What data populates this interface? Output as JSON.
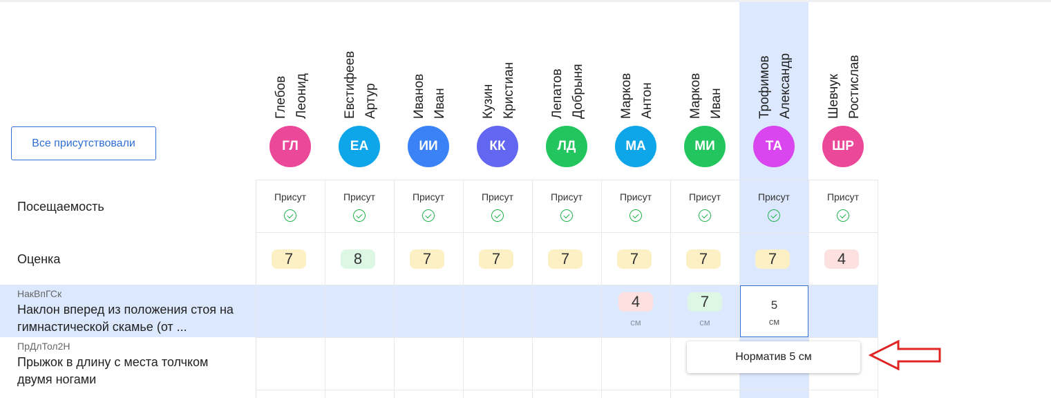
{
  "toolbar": {
    "all_present_label": "Все присутствовали"
  },
  "rows": {
    "attendance_label": "Посещаемость",
    "grade_label": "Оценка"
  },
  "exercises": [
    {
      "code": "НакВпГСк",
      "title": "Наклон вперед из положения стоя на гимнастической скамье (от ..."
    },
    {
      "code": "ПрДлТол2Н",
      "title": "Прыжок в длину с места толчком двумя ногами"
    }
  ],
  "students": [
    {
      "last": "Глебов",
      "first": "Леонид",
      "initials": "ГЛ",
      "color": "#ec4899",
      "attendance": "Присут",
      "grade": "7",
      "grade_tone": "yellow",
      "result": "",
      "unit": ""
    },
    {
      "last": "Евстифеев",
      "first": "Артур",
      "initials": "ЕА",
      "color": "#0ea5e9",
      "attendance": "Присут",
      "grade": "8",
      "grade_tone": "green",
      "result": "",
      "unit": ""
    },
    {
      "last": "Иванов",
      "first": "Иван",
      "initials": "ИИ",
      "color": "#3b82f6",
      "attendance": "Присут",
      "grade": "7",
      "grade_tone": "yellow",
      "result": "",
      "unit": ""
    },
    {
      "last": "Кузин",
      "first": "Кристиан",
      "initials": "КК",
      "color": "#6366f1",
      "attendance": "Присут",
      "grade": "7",
      "grade_tone": "yellow",
      "result": "",
      "unit": ""
    },
    {
      "last": "Лепатов",
      "first": "Добрыня",
      "initials": "ЛД",
      "color": "#22c55e",
      "attendance": "Присут",
      "grade": "7",
      "grade_tone": "yellow",
      "result": "",
      "unit": ""
    },
    {
      "last": "Марков",
      "first": "Антон",
      "initials": "МА",
      "color": "#0ea5e9",
      "attendance": "Присут",
      "grade": "7",
      "grade_tone": "yellow",
      "result": "4",
      "result_tone": "red",
      "unit": "см"
    },
    {
      "last": "Марков",
      "first": "Иван",
      "initials": "МИ",
      "color": "#22c55e",
      "attendance": "Присут",
      "grade": "7",
      "grade_tone": "yellow",
      "result": "7",
      "result_tone": "green",
      "unit": "см"
    },
    {
      "last": "Трофимов",
      "first": "Александр",
      "initials": "ТА",
      "color": "#d946ef",
      "attendance": "Присут",
      "grade": "7",
      "grade_tone": "yellow",
      "result": "",
      "unit": ""
    },
    {
      "last": "Шевчук",
      "first": "Ростислав",
      "initials": "ШР",
      "color": "#ec4899",
      "attendance": "Присут",
      "grade": "4",
      "grade_tone": "red",
      "result": "",
      "unit": ""
    }
  ],
  "active_input": {
    "value": "5",
    "unit": "см"
  },
  "tooltip": {
    "text": "Норматив 5 см"
  },
  "arrow_color": "#e02424"
}
